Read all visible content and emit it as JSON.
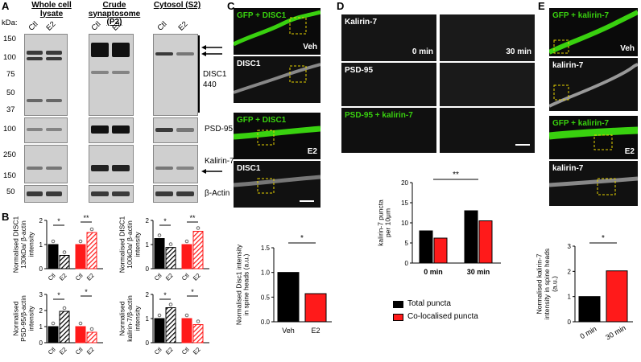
{
  "panels": {
    "A": {
      "letter": "A",
      "kda": "kDa:",
      "headers": [
        "Whole cell lysate",
        "Crude synaptosome (P2)",
        "Cytosol (S2)"
      ],
      "lanes": [
        "Ctl",
        "E2"
      ],
      "markers_disc1": [
        "150",
        "100",
        "75",
        "50",
        "37"
      ],
      "marker_psd": "100",
      "markers_kal": [
        "250",
        "150"
      ],
      "marker_actin": "50",
      "labels": {
        "disc1": "DISC1",
        "disc1_ab": "440",
        "psd95": "PSD-95",
        "kalirin": "Kalirin-7",
        "actin": "β-Actin"
      }
    },
    "B": {
      "letter": "B",
      "charts": [
        {
          "ylabel": "Normalised DISC1 130kDa/ β-actin intensity",
          "ymax": 2,
          "ticks": [
            "0",
            "1",
            "2"
          ],
          "values": [
            1.0,
            0.55,
            1.0,
            1.5
          ],
          "sig": [
            "*",
            "**"
          ]
        },
        {
          "ylabel": "Normalised DISC1 100kDa/ β-actin intensity",
          "ymax": 2,
          "ticks": [
            "0",
            "1",
            "2"
          ],
          "values": [
            1.25,
            0.88,
            1.0,
            1.55
          ],
          "sig": [
            "*",
            "**"
          ]
        },
        {
          "ylabel": "Normalised PSD-95/β-actin intensity",
          "ymax": 3,
          "ticks": [
            "0",
            "1",
            "2",
            "3"
          ],
          "values": [
            1.0,
            1.95,
            1.0,
            0.65
          ],
          "sig": [
            "*",
            "*"
          ]
        },
        {
          "ylabel": "Normalised kalirin-7/β-actin intensity",
          "ymax": 2,
          "ticks": [
            "0",
            "1",
            "2"
          ],
          "values": [
            1.0,
            1.45,
            1.0,
            0.75
          ],
          "sig": [
            "*",
            "*"
          ]
        }
      ],
      "xlabels": [
        "Ctl",
        "E2",
        "Ctl",
        "E2"
      ]
    },
    "C": {
      "letter": "C",
      "img_labels": [
        "GFP + DISC1",
        "Veh",
        "DISC1",
        "GFP + DISC1",
        "E2",
        "DISC1"
      ],
      "chart": {
        "ylabel": "Normalised Disc1 intensity in spine heads (a.u.)",
        "categories": [
          "Veh",
          "E2"
        ],
        "values": [
          1.0,
          0.57
        ],
        "ticks": [
          "0.0",
          "0.5",
          "1.0",
          "1.5"
        ],
        "sig": "*"
      }
    },
    "D": {
      "letter": "D",
      "img_labels": [
        "Kalirin-7",
        "0 min",
        "30 min",
        "PSD-95",
        "PSD-95 + kalirin-7"
      ],
      "chart": {
        "ylabel": "kalirin-7 puncta per 10μm",
        "categories": [
          "0 min",
          "30 min"
        ],
        "series": [
          {
            "name": "Total puncta",
            "values": [
              8,
              13
            ]
          },
          {
            "name": "Co-localised puncta",
            "values": [
              6.2,
              10.5
            ]
          }
        ],
        "ticks": [
          "0",
          "5",
          "10",
          "15",
          "20"
        ],
        "sig": "**"
      },
      "legend": [
        "Total puncta",
        "Co-localised puncta"
      ]
    },
    "E": {
      "letter": "E",
      "img_labels": [
        "GFP + kalirin-7",
        "Veh",
        "kalirin-7",
        "GFP + kalirin-7",
        "E2",
        "kalirin-7"
      ],
      "chart": {
        "ylabel": "Normalised kalirin-7 intensity in spine heads (a.u.)",
        "categories": [
          "0 min",
          "30 min"
        ],
        "values": [
          1.0,
          2.02
        ],
        "ticks": [
          "0",
          "1",
          "2",
          "3"
        ],
        "sig": "*"
      }
    }
  },
  "colors": {
    "black": "#000000",
    "red": "#ff1a1a",
    "green": "#39d10f",
    "magenta": "#e040e0"
  },
  "chart_data": [
    {
      "type": "bar",
      "title": "",
      "ylabel": "Normalised DISC1 130kDa/ β-actin intensity",
      "categories": [
        "Ctl",
        "E2",
        "Ctl",
        "E2"
      ],
      "values": [
        1.0,
        0.55,
        1.0,
        1.5
      ],
      "ylim": [
        0,
        2
      ]
    },
    {
      "type": "bar",
      "title": "",
      "ylabel": "Normalised DISC1 100kDa/ β-actin intensity",
      "categories": [
        "Ctl",
        "E2",
        "Ctl",
        "E2"
      ],
      "values": [
        1.25,
        0.88,
        1.0,
        1.55
      ],
      "ylim": [
        0,
        2
      ]
    },
    {
      "type": "bar",
      "title": "",
      "ylabel": "Normalised PSD-95/β-actin intensity",
      "categories": [
        "Ctl",
        "E2",
        "Ctl",
        "E2"
      ],
      "values": [
        1.0,
        1.95,
        1.0,
        0.65
      ],
      "ylim": [
        0,
        3
      ]
    },
    {
      "type": "bar",
      "title": "",
      "ylabel": "Normalised kalirin-7/β-actin intensity",
      "categories": [
        "Ctl",
        "E2",
        "Ctl",
        "E2"
      ],
      "values": [
        1.0,
        1.45,
        1.0,
        0.75
      ],
      "ylim": [
        0,
        2
      ]
    },
    {
      "type": "bar",
      "title": "",
      "ylabel": "Normalised Disc1 intensity in spine heads (a.u.)",
      "categories": [
        "Veh",
        "E2"
      ],
      "values": [
        1.0,
        0.57
      ],
      "ylim": [
        0,
        1.5
      ]
    },
    {
      "type": "bar",
      "title": "",
      "ylabel": "kalirin-7 puncta per 10μm",
      "categories": [
        "0 min",
        "30 min"
      ],
      "series": [
        {
          "name": "Total puncta",
          "values": [
            8,
            13
          ]
        },
        {
          "name": "Co-localised puncta",
          "values": [
            6.2,
            10.5
          ]
        }
      ],
      "ylim": [
        0,
        20
      ]
    },
    {
      "type": "bar",
      "title": "",
      "ylabel": "Normalised kalirin-7 intensity in spine heads (a.u.)",
      "categories": [
        "0 min",
        "30 min"
      ],
      "values": [
        1.0,
        2.02
      ],
      "ylim": [
        0,
        3
      ]
    }
  ]
}
